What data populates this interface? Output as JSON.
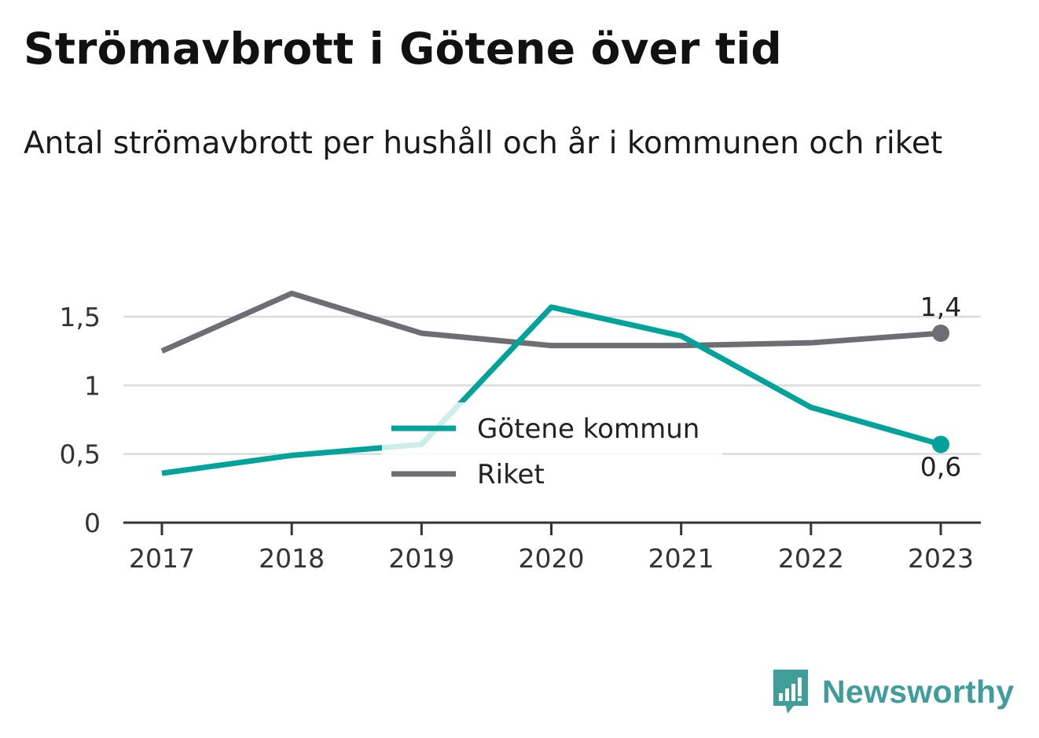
{
  "header": {
    "title": "Strömavbrott i Götene över tid",
    "subtitle": "Antal strömavbrott per hushåll och år i kommunen och riket"
  },
  "chart_data": {
    "type": "line",
    "title": "Strömavbrott i Götene över tid",
    "subtitle": "Antal strömavbrott per hushåll och år i kommunen och riket",
    "xlabel": "",
    "ylabel": "",
    "categories": [
      "2017",
      "2018",
      "2019",
      "2020",
      "2021",
      "2022",
      "2023"
    ],
    "ylim": [
      0,
      1.8
    ],
    "yticks": [
      0,
      0.5,
      1,
      1.5
    ],
    "ytick_labels": [
      "0",
      "0,5",
      "1",
      "1,5"
    ],
    "grid": true,
    "legend_position": "center",
    "series": [
      {
        "name": "Götene kommun",
        "color": "#00a39a",
        "values": [
          0.36,
          0.49,
          0.57,
          1.57,
          1.36,
          0.84,
          0.57
        ],
        "end_label": "0,6"
      },
      {
        "name": "Riket",
        "color": "#6e6d73",
        "values": [
          1.25,
          1.67,
          1.38,
          1.29,
          1.29,
          1.31,
          1.38
        ],
        "end_label": "1,4"
      }
    ]
  },
  "branding": {
    "logo_text": "Newsworthy",
    "logo_color": "#3f9e9a",
    "icon": "bar-chart-speech-bubble-icon"
  }
}
